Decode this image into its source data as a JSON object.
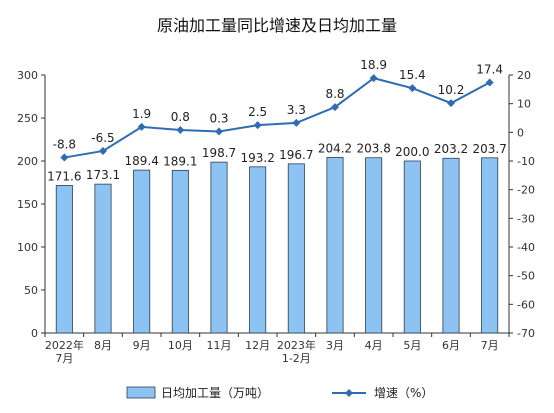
{
  "chart_data": {
    "type": "bar+line",
    "title": "原油加工量同比增速及日均加工量",
    "categories": [
      [
        "2022年",
        "7月"
      ],
      [
        "8月"
      ],
      [
        "9月"
      ],
      [
        "10月"
      ],
      [
        "11月"
      ],
      [
        "12月"
      ],
      [
        "2023年",
        "1-2月"
      ],
      [
        "3月"
      ],
      [
        "4月"
      ],
      [
        "5月"
      ],
      [
        "6月"
      ],
      [
        "7月"
      ]
    ],
    "bar_series": {
      "name": "日均加工量（万吨）",
      "values": [
        171.6,
        173.1,
        189.4,
        189.1,
        198.7,
        193.2,
        196.7,
        204.2,
        203.8,
        200.0,
        203.2,
        203.7
      ],
      "labels": [
        "171.6",
        "173.1",
        "189.4",
        "189.1",
        "198.7",
        "193.2",
        "196.7",
        "204.2",
        "203.8",
        "200.0",
        "203.2",
        "203.7"
      ],
      "color": "#8dc3f2",
      "axis": "left"
    },
    "line_series": {
      "name": "增速（%）",
      "values": [
        -8.8,
        -6.5,
        1.9,
        0.8,
        0.3,
        2.5,
        3.3,
        8.8,
        18.9,
        15.4,
        10.2,
        17.4
      ],
      "labels": [
        "-8.8",
        "-6.5",
        "1.9",
        "0.8",
        "0.3",
        "2.5",
        "3.3",
        "8.8",
        "18.9",
        "15.4",
        "10.2",
        "17.4"
      ],
      "color": "#2e6db4",
      "axis": "right"
    },
    "y_left": {
      "min": 0,
      "max": 300,
      "ticks": [
        0,
        50,
        100,
        150,
        200,
        250,
        300
      ]
    },
    "y_right": {
      "min": -70,
      "max": 20,
      "ticks": [
        20,
        10,
        0,
        -10,
        -20,
        -30,
        -40,
        -50,
        -60,
        -70
      ]
    },
    "legend_position": "bottom",
    "grid": false
  }
}
